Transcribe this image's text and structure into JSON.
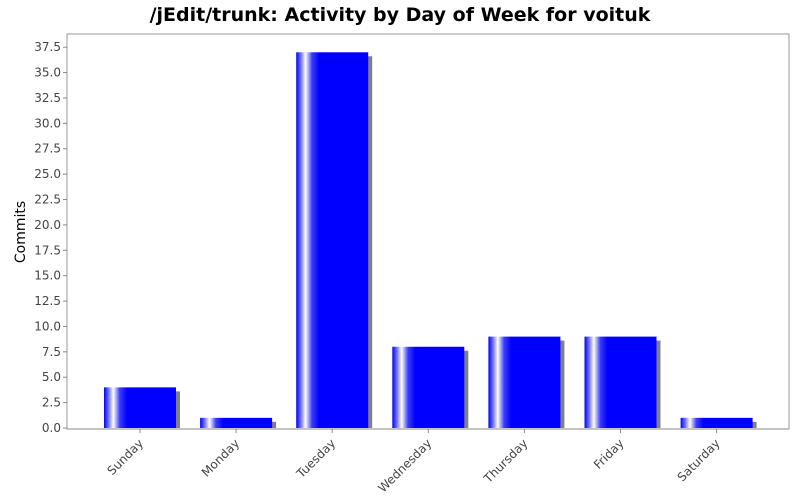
{
  "chart_data": {
    "type": "bar",
    "title": "/jEdit/trunk: Activity by Day of Week for voituk",
    "xlabel": "",
    "ylabel": "Commits",
    "categories": [
      "Sunday",
      "Monday",
      "Tuesday",
      "Wednesday",
      "Thursday",
      "Friday",
      "Saturday"
    ],
    "values": [
      4,
      1,
      37,
      8,
      9,
      9,
      1
    ],
    "ylim": [
      0,
      38.8
    ],
    "yticks": [
      "0.0",
      "2.5",
      "5.0",
      "7.5",
      "10.0",
      "12.5",
      "15.0",
      "17.5",
      "20.0",
      "22.5",
      "25.0",
      "27.5",
      "30.0",
      "32.5",
      "35.0",
      "37.5"
    ],
    "grid": false,
    "colors": {
      "bar": "#0000ff",
      "bar_highlight": "#ffffff",
      "shadow": "#808080"
    }
  }
}
